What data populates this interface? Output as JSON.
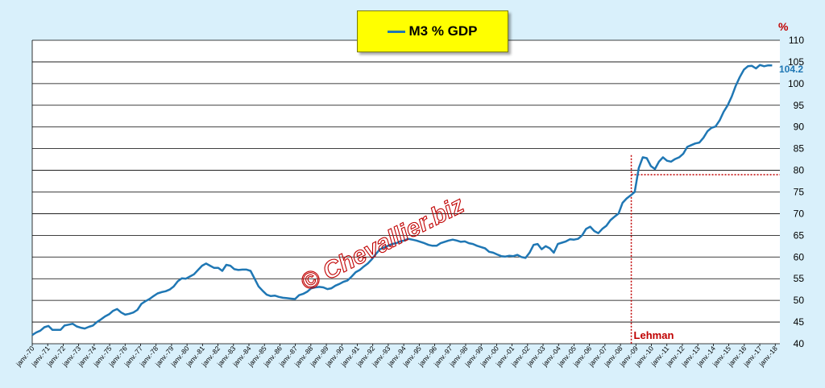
{
  "chart_data": {
    "type": "line",
    "unit": "%",
    "series": [
      {
        "name": "M3 % GDP",
        "values": [
          42,
          42.6,
          43,
          43.8,
          44.1,
          43.2,
          43.2,
          43.2,
          44.2,
          44.4,
          44.6,
          44,
          43.7,
          43.5,
          43.9,
          44.2,
          45,
          45.6,
          46.3,
          46.8,
          47.6,
          48,
          47.2,
          46.7,
          46.9,
          47.2,
          47.8,
          49.2,
          49.8,
          50.3,
          51,
          51.6,
          51.9,
          52.1,
          52.5,
          53.2,
          54.4,
          55.1,
          55,
          55.5,
          56,
          57,
          58,
          58.5,
          58,
          57.5,
          57.5,
          56.8,
          58.2,
          58,
          57.2,
          57,
          57.1,
          57.1,
          56.8,
          55,
          53.2,
          52.2,
          51.3,
          51,
          51.1,
          50.8,
          50.6,
          50.5,
          50.4,
          50.3,
          51.2,
          51.5,
          52,
          52.8,
          53,
          53.1,
          53,
          52.6,
          52.8,
          53.4,
          53.8,
          54.3,
          54.6,
          55.5,
          56.5,
          57,
          57.8,
          58.5,
          59.5,
          60.7,
          61.8,
          62.2,
          62.6,
          63,
          63.2,
          63.6,
          63.8,
          64.2,
          64,
          63.8,
          63.5,
          63.2,
          62.8,
          62.6,
          62.6,
          63.2,
          63.5,
          63.8,
          64,
          63.8,
          63.5,
          63.6,
          63.2,
          63,
          62.6,
          62.3,
          62,
          61.2,
          61,
          60.6,
          60.2,
          60.1,
          60.3,
          60.2,
          60.5,
          60,
          59.8,
          61,
          62.8,
          63,
          61.8,
          62.5,
          62,
          61,
          63,
          63.3,
          63.6,
          64.1,
          64,
          64.2,
          65,
          66.5,
          67,
          66,
          65.5,
          66.5,
          67.2,
          68.5,
          69.3,
          70,
          72.5,
          73.5,
          74.2,
          75,
          80.5,
          83,
          82.8,
          81,
          80.3,
          82,
          83,
          82.2,
          82,
          82.6,
          83,
          83.8,
          85.4,
          85.8,
          86.2,
          86.4,
          87.5,
          89,
          89.8,
          90.1,
          91.5,
          93.5,
          95,
          97,
          99.5,
          101.5,
          103.2,
          104,
          104.1,
          103.5,
          104.3,
          104,
          104.2,
          104.2
        ]
      }
    ],
    "x_start_year": 1970,
    "x_end_year": 2018,
    "x_tick_labels": [
      "janv.-70",
      "janv.-71",
      "janv.-72",
      "janv.-73",
      "janv.-74",
      "janv.-75",
      "janv.-76",
      "janv.-77",
      "janv.-78",
      "janv.-79",
      "janv.-80",
      "janv.-81",
      "janv.-82",
      "janv.-83",
      "janv.-84",
      "janv.-85",
      "janv.-86",
      "janv.-87",
      "janv.-88",
      "janv.-89",
      "janv.-90",
      "janv.-91",
      "janv.-92",
      "janv.-93",
      "janv.-94",
      "janv.-95",
      "janv.-96",
      "janv.-97",
      "janv.-98",
      "janv.-99",
      "janv.-00",
      "janv.-01",
      "janv.-02",
      "janv.-03",
      "janv.-04",
      "janv.-05",
      "janv.-06",
      "janv.-07",
      "janv.-08",
      "janv.-09",
      "janv.-10",
      "janv.-11",
      "janv.-12",
      "janv.-13",
      "janv.-14",
      "janv.-15",
      "janv.-16",
      "janv.-17",
      "janv.-18"
    ],
    "ylim": [
      40,
      110
    ],
    "y_tick_labels": [
      "40",
      "45",
      "50",
      "55",
      "60",
      "65",
      "70",
      "75",
      "80",
      "85",
      "90",
      "95",
      "100",
      "105",
      "110"
    ],
    "grid": "horizontal",
    "legend": "top-center",
    "last_value_label": "104.2",
    "annotations": {
      "event_label": "Lehman",
      "event_year": 2008.7,
      "reference_level": 79,
      "watermark": "© Chevallier.biz"
    },
    "colors": {
      "line": "#1f77b4",
      "annotation": "#c00000",
      "background": "#d9f0fb",
      "plot": "#ffffff",
      "legend_bg": "#ffff00"
    }
  }
}
